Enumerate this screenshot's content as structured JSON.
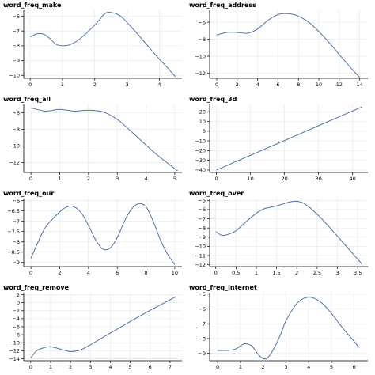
{
  "chart_data": [
    {
      "type": "line",
      "title": "word_freq_make",
      "xlabel": "",
      "ylabel": "",
      "xlim": [
        -0.2,
        4.7
      ],
      "ylim": [
        -10.2,
        -5.6
      ],
      "xticks": [
        0,
        1,
        2,
        3,
        4
      ],
      "yticks": [
        -10,
        -9,
        -8,
        -7,
        -6
      ],
      "grid": true,
      "series": [
        {
          "x": [
            0,
            0.2,
            0.4,
            0.6,
            0.8,
            1.0,
            1.2,
            1.5,
            2.0,
            2.3,
            2.5,
            2.8,
            3.2,
            3.6,
            4.0,
            4.3,
            4.5
          ],
          "y": [
            -7.4,
            -7.2,
            -7.2,
            -7.5,
            -7.9,
            -8.0,
            -7.95,
            -7.6,
            -6.6,
            -5.85,
            -5.75,
            -6.0,
            -6.9,
            -7.9,
            -8.9,
            -9.6,
            -10.1
          ]
        }
      ]
    },
    {
      "type": "line",
      "title": "word_freq_address",
      "xlabel": "",
      "ylabel": "",
      "xlim": [
        -0.7,
        14.8
      ],
      "ylim": [
        -12.6,
        -4.6
      ],
      "xticks": [
        0,
        2,
        4,
        6,
        8,
        10,
        12,
        14
      ],
      "yticks": [
        -12,
        -10,
        -8,
        -6
      ],
      "grid": true,
      "series": [
        {
          "x": [
            0,
            1,
            2,
            3,
            4,
            5,
            6,
            7,
            8,
            9,
            10,
            11,
            12,
            13,
            14
          ],
          "y": [
            -7.5,
            -7.2,
            -7.2,
            -7.3,
            -6.8,
            -5.8,
            -5.1,
            -5.0,
            -5.3,
            -6.0,
            -7.1,
            -8.4,
            -9.8,
            -11.2,
            -12.5
          ]
        }
      ]
    },
    {
      "type": "line",
      "title": "word_freq_all",
      "xlabel": "",
      "ylabel": "",
      "xlim": [
        -0.25,
        5.25
      ],
      "ylim": [
        -13.2,
        -5.0
      ],
      "xticks": [
        0,
        1,
        2,
        3,
        4,
        5
      ],
      "yticks": [
        -12,
        -10,
        -8,
        -6
      ],
      "grid": true,
      "series": [
        {
          "x": [
            0,
            0.5,
            1.0,
            1.5,
            2.0,
            2.5,
            3.0,
            3.5,
            4.0,
            4.5,
            5.1
          ],
          "y": [
            -5.4,
            -5.8,
            -5.6,
            -5.8,
            -5.7,
            -5.9,
            -6.8,
            -8.3,
            -9.9,
            -11.4,
            -13.0
          ]
        }
      ]
    },
    {
      "type": "line",
      "title": "word_freq_3d",
      "xlabel": "",
      "ylabel": "",
      "xlim": [
        -2,
        44.5
      ],
      "ylim": [
        -42.5,
        27.5
      ],
      "xticks": [
        0,
        10,
        20,
        30,
        40
      ],
      "yticks": [
        -40,
        -30,
        -20,
        -10,
        0,
        10,
        20
      ],
      "grid": true,
      "series": [
        {
          "x": [
            0,
            42.8
          ],
          "y": [
            -40,
            25
          ]
        }
      ]
    },
    {
      "type": "line",
      "title": "word_freq_our",
      "xlabel": "",
      "ylabel": "",
      "xlim": [
        -0.5,
        10.5
      ],
      "ylim": [
        -9.2,
        -5.9
      ],
      "xticks": [
        0,
        2,
        4,
        6,
        8,
        10
      ],
      "yticks": [
        -9,
        -8.5,
        -8,
        -7.5,
        -7,
        -6.5,
        -6
      ],
      "grid": true,
      "series": [
        {
          "x": [
            0,
            0.5,
            1,
            1.5,
            2,
            2.5,
            3,
            3.5,
            4,
            4.5,
            5,
            5.5,
            6,
            6.5,
            7,
            7.5,
            8,
            8.5,
            9,
            9.5,
            10
          ],
          "y": [
            -8.8,
            -8.0,
            -7.3,
            -6.9,
            -6.55,
            -6.3,
            -6.3,
            -6.6,
            -7.2,
            -7.9,
            -8.35,
            -8.3,
            -7.8,
            -7.0,
            -6.4,
            -6.15,
            -6.3,
            -7.0,
            -7.9,
            -8.6,
            -9.1
          ]
        }
      ]
    },
    {
      "type": "line",
      "title": "word_freq_over",
      "xlabel": "",
      "ylabel": "",
      "xlim": [
        -0.15,
        3.75
      ],
      "ylim": [
        -12.2,
        -4.8
      ],
      "xticks": [
        0,
        0.5,
        1,
        1.5,
        2,
        2.5,
        3,
        3.5
      ],
      "yticks": [
        -12,
        -11,
        -10,
        -9,
        -8,
        -7,
        -6,
        -5
      ],
      "grid": true,
      "series": [
        {
          "x": [
            0,
            0.15,
            0.3,
            0.5,
            0.7,
            1.0,
            1.2,
            1.5,
            1.8,
            2.0,
            2.2,
            2.5,
            2.8,
            3.1,
            3.4,
            3.6
          ],
          "y": [
            -8.4,
            -8.8,
            -8.7,
            -8.3,
            -7.5,
            -6.4,
            -5.9,
            -5.6,
            -5.2,
            -5.1,
            -5.4,
            -6.5,
            -7.9,
            -9.4,
            -10.9,
            -11.9
          ]
        }
      ]
    },
    {
      "type": "line",
      "title": "word_freq_remove",
      "xlabel": "",
      "ylabel": "",
      "xlim": [
        -0.35,
        7.6
      ],
      "ylim": [
        -14.5,
        2.5
      ],
      "xticks": [
        0,
        1,
        2,
        3,
        4,
        5,
        6,
        7
      ],
      "yticks": [
        -14,
        -12,
        -10,
        -8,
        -6,
        -4,
        -2,
        0,
        2
      ],
      "grid": true,
      "series": [
        {
          "x": [
            0,
            0.3,
            0.7,
            1.0,
            1.5,
            2.0,
            2.5,
            3.0,
            4.0,
            5.0,
            6.0,
            7.3
          ],
          "y": [
            -13.8,
            -12.0,
            -11.2,
            -11.0,
            -11.6,
            -12.2,
            -11.8,
            -10.5,
            -7.6,
            -4.7,
            -1.9,
            1.5
          ]
        }
      ]
    },
    {
      "type": "line",
      "title": "word_freq_internet",
      "xlabel": "",
      "ylabel": "",
      "xlim": [
        -0.35,
        6.6
      ],
      "ylim": [
        -9.5,
        -4.9
      ],
      "xticks": [
        0,
        1,
        2,
        3,
        4,
        5,
        6
      ],
      "yticks": [
        -9,
        -8,
        -7,
        -6,
        -5
      ],
      "grid": true,
      "series": [
        {
          "x": [
            0,
            0.5,
            0.8,
            1.0,
            1.2,
            1.5,
            1.8,
            2.0,
            2.2,
            2.5,
            2.8,
            3.0,
            3.5,
            4.0,
            4.5,
            5.0,
            5.5,
            6.0,
            6.2
          ],
          "y": [
            -8.8,
            -8.8,
            -8.7,
            -8.5,
            -8.35,
            -8.5,
            -9.1,
            -9.35,
            -9.3,
            -8.6,
            -7.6,
            -6.8,
            -5.6,
            -5.2,
            -5.5,
            -6.3,
            -7.3,
            -8.2,
            -8.6
          ]
        }
      ]
    }
  ],
  "colors": {
    "line": "#4c72b0",
    "grid": "#e6e6e6",
    "axis": "#000000"
  }
}
